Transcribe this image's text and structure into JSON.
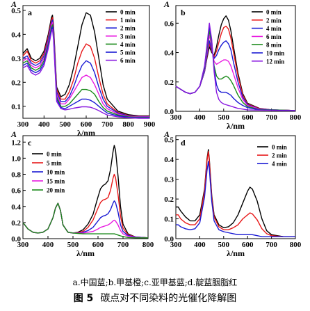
{
  "captions": {
    "sub": "a.中国蓝;b.甲基橙;c.亚甲基蓝;d.靛蓝胭脂红",
    "figure_label": "图 5",
    "figure_title": "碳点对不同染料的光催化降解图"
  },
  "chart_data": [
    {
      "type": "line",
      "panel": "a",
      "ylabel": "A",
      "xlabel": "λ/nm",
      "xlim": [
        300,
        900
      ],
      "ylim": [
        0.05,
        0.52
      ],
      "xticks": [
        300,
        400,
        500,
        600,
        700,
        800,
        900
      ],
      "yticks": [
        0.1,
        0.2,
        0.3,
        0.4,
        0.5
      ],
      "ytick_labels": [
        "0.1",
        "0.2",
        "0.3",
        "0.4",
        "0.5"
      ],
      "legend_position": "top-right",
      "x": [
        300,
        320,
        340,
        360,
        380,
        400,
        420,
        435,
        440,
        445,
        460,
        480,
        500,
        520,
        540,
        560,
        580,
        600,
        620,
        640,
        660,
        680,
        700,
        750,
        800,
        850,
        900
      ],
      "series": [
        {
          "name": "0 min",
          "color": "#000000",
          "values": [
            0.32,
            0.34,
            0.3,
            0.29,
            0.3,
            0.33,
            0.4,
            0.47,
            0.48,
            0.44,
            0.18,
            0.14,
            0.15,
            0.19,
            0.26,
            0.35,
            0.44,
            0.49,
            0.48,
            0.41,
            0.3,
            0.19,
            0.13,
            0.08,
            0.065,
            0.06,
            0.06
          ]
        },
        {
          "name": "1 min",
          "color": "#e8191a",
          "values": [
            0.31,
            0.33,
            0.29,
            0.28,
            0.29,
            0.32,
            0.39,
            0.46,
            0.47,
            0.43,
            0.17,
            0.13,
            0.13,
            0.16,
            0.21,
            0.28,
            0.33,
            0.36,
            0.35,
            0.3,
            0.22,
            0.15,
            0.11,
            0.075,
            0.062,
            0.058,
            0.058
          ]
        },
        {
          "name": "2 min",
          "color": "#1a1ad4",
          "values": [
            0.3,
            0.31,
            0.28,
            0.27,
            0.28,
            0.31,
            0.38,
            0.45,
            0.46,
            0.42,
            0.16,
            0.12,
            0.12,
            0.14,
            0.18,
            0.23,
            0.27,
            0.29,
            0.28,
            0.24,
            0.18,
            0.13,
            0.1,
            0.072,
            0.06,
            0.057,
            0.057
          ]
        },
        {
          "name": "3 min",
          "color": "#e81ae0",
          "values": [
            0.29,
            0.3,
            0.27,
            0.26,
            0.27,
            0.3,
            0.37,
            0.44,
            0.45,
            0.41,
            0.15,
            0.11,
            0.11,
            0.13,
            0.16,
            0.19,
            0.22,
            0.23,
            0.22,
            0.19,
            0.15,
            0.11,
            0.09,
            0.068,
            0.058,
            0.056,
            0.056
          ]
        },
        {
          "name": "4 min",
          "color": "#1a8a1a",
          "values": [
            0.28,
            0.29,
            0.26,
            0.25,
            0.26,
            0.29,
            0.36,
            0.43,
            0.44,
            0.4,
            0.14,
            0.1,
            0.1,
            0.11,
            0.13,
            0.15,
            0.17,
            0.17,
            0.165,
            0.15,
            0.12,
            0.095,
            0.08,
            0.064,
            0.056,
            0.054,
            0.054
          ]
        },
        {
          "name": "5 min",
          "color": "#1a1ad4",
          "values": [
            0.27,
            0.28,
            0.25,
            0.24,
            0.25,
            0.28,
            0.35,
            0.42,
            0.43,
            0.39,
            0.13,
            0.095,
            0.09,
            0.1,
            0.11,
            0.12,
            0.13,
            0.13,
            0.125,
            0.115,
            0.1,
            0.085,
            0.072,
            0.06,
            0.054,
            0.052,
            0.052
          ]
        },
        {
          "name": "6 min",
          "color": "#8a1ae0",
          "values": [
            0.26,
            0.27,
            0.24,
            0.23,
            0.24,
            0.27,
            0.34,
            0.41,
            0.42,
            0.38,
            0.12,
            0.09,
            0.085,
            0.088,
            0.092,
            0.095,
            0.098,
            0.098,
            0.096,
            0.09,
            0.082,
            0.072,
            0.064,
            0.056,
            0.052,
            0.05,
            0.05
          ]
        }
      ]
    },
    {
      "type": "line",
      "panel": "b",
      "ylabel": "A",
      "xlabel": "λ/nm",
      "xlim": [
        300,
        800
      ],
      "ylim": [
        0.0,
        0.72
      ],
      "xticks": [
        300,
        400,
        500,
        600,
        700,
        800
      ],
      "yticks": [
        0.0,
        0.2,
        0.4,
        0.6
      ],
      "ytick_labels": [
        "0.0",
        "0.2",
        "0.4",
        "0.6"
      ],
      "legend_position": "top-right",
      "x": [
        300,
        320,
        340,
        360,
        380,
        400,
        420,
        430,
        440,
        450,
        460,
        470,
        480,
        490,
        500,
        510,
        520,
        530,
        540,
        560,
        580,
        600,
        650,
        700,
        750,
        800
      ],
      "series": [
        {
          "name": "0 min",
          "color": "#000000",
          "values": [
            0.17,
            0.15,
            0.13,
            0.12,
            0.13,
            0.17,
            0.27,
            0.36,
            0.44,
            0.4,
            0.38,
            0.44,
            0.52,
            0.59,
            0.63,
            0.65,
            0.62,
            0.55,
            0.45,
            0.26,
            0.12,
            0.055,
            0.02,
            0.01,
            0.008,
            0.005
          ]
        },
        {
          "name": "2 min",
          "color": "#e8191a",
          "values": [
            0.17,
            0.15,
            0.13,
            0.12,
            0.13,
            0.17,
            0.27,
            0.37,
            0.46,
            0.41,
            0.37,
            0.41,
            0.47,
            0.53,
            0.57,
            0.58,
            0.56,
            0.5,
            0.41,
            0.24,
            0.11,
            0.05,
            0.018,
            0.01,
            0.008,
            0.005
          ]
        },
        {
          "name": "4 min",
          "color": "#1a1ad4",
          "values": [
            0.17,
            0.15,
            0.13,
            0.12,
            0.13,
            0.17,
            0.27,
            0.38,
            0.48,
            0.42,
            0.36,
            0.38,
            0.42,
            0.45,
            0.47,
            0.48,
            0.46,
            0.42,
            0.34,
            0.2,
            0.095,
            0.045,
            0.016,
            0.01,
            0.008,
            0.005
          ]
        },
        {
          "name": "6 min",
          "color": "#e81ae0",
          "values": [
            0.17,
            0.15,
            0.13,
            0.12,
            0.13,
            0.17,
            0.28,
            0.4,
            0.52,
            0.44,
            0.34,
            0.32,
            0.33,
            0.34,
            0.35,
            0.35,
            0.34,
            0.31,
            0.26,
            0.16,
            0.08,
            0.04,
            0.015,
            0.01,
            0.008,
            0.005
          ]
        },
        {
          "name": "8 min",
          "color": "#1a8a1a",
          "values": [
            0.17,
            0.15,
            0.13,
            0.12,
            0.13,
            0.17,
            0.29,
            0.42,
            0.55,
            0.46,
            0.31,
            0.24,
            0.22,
            0.22,
            0.23,
            0.24,
            0.23,
            0.21,
            0.18,
            0.11,
            0.06,
            0.032,
            0.012,
            0.01,
            0.008,
            0.005
          ]
        },
        {
          "name": "10 min",
          "color": "#1a1ad4",
          "values": [
            0.17,
            0.15,
            0.13,
            0.12,
            0.13,
            0.17,
            0.3,
            0.44,
            0.58,
            0.48,
            0.29,
            0.18,
            0.14,
            0.13,
            0.13,
            0.13,
            0.12,
            0.11,
            0.09,
            0.06,
            0.04,
            0.025,
            0.01,
            0.008,
            0.006,
            0.005
          ]
        },
        {
          "name": "12 min",
          "color": "#8a1ae0",
          "values": [
            0.17,
            0.15,
            0.13,
            0.12,
            0.13,
            0.17,
            0.31,
            0.45,
            0.6,
            0.49,
            0.27,
            0.13,
            0.08,
            0.06,
            0.05,
            0.045,
            0.04,
            0.035,
            0.03,
            0.02,
            0.015,
            0.01,
            0.008,
            0.006,
            0.005,
            0.005
          ]
        }
      ]
    },
    {
      "type": "line",
      "panel": "c",
      "ylabel": "A",
      "xlabel": "λ/nm",
      "xlim": [
        300,
        800
      ],
      "ylim": [
        0.0,
        1.28
      ],
      "xticks": [
        300,
        400,
        500,
        600,
        700,
        800
      ],
      "yticks": [
        0.0,
        0.2,
        0.4,
        0.6,
        0.8,
        1.0,
        1.2
      ],
      "ytick_labels": [
        "0.0",
        "0.2",
        "0.4",
        "0.6",
        "0.8",
        "1.0",
        "1.2"
      ],
      "legend_position": "top-left",
      "x": [
        300,
        320,
        340,
        360,
        380,
        400,
        420,
        430,
        440,
        450,
        460,
        480,
        500,
        520,
        540,
        560,
        580,
        600,
        610,
        620,
        630,
        640,
        650,
        660,
        665,
        670,
        680,
        690,
        700,
        720,
        750,
        800
      ],
      "series": [
        {
          "name": "0 min",
          "color": "#000000",
          "values": [
            0.2,
            0.12,
            0.08,
            0.07,
            0.08,
            0.12,
            0.26,
            0.38,
            0.44,
            0.35,
            0.17,
            0.08,
            0.07,
            0.08,
            0.11,
            0.18,
            0.3,
            0.52,
            0.62,
            0.66,
            0.68,
            0.72,
            0.86,
            1.08,
            1.16,
            1.1,
            0.78,
            0.4,
            0.18,
            0.06,
            0.02,
            0.01
          ]
        },
        {
          "name": "5 min",
          "color": "#e8191a",
          "values": [
            0.2,
            0.12,
            0.08,
            0.07,
            0.08,
            0.12,
            0.26,
            0.38,
            0.44,
            0.35,
            0.17,
            0.08,
            0.07,
            0.075,
            0.09,
            0.14,
            0.23,
            0.38,
            0.45,
            0.48,
            0.49,
            0.51,
            0.6,
            0.75,
            0.8,
            0.76,
            0.55,
            0.28,
            0.13,
            0.05,
            0.02,
            0.01
          ]
        },
        {
          "name": "10 min",
          "color": "#1a1ad4",
          "values": [
            0.2,
            0.12,
            0.08,
            0.07,
            0.08,
            0.12,
            0.26,
            0.38,
            0.44,
            0.35,
            0.17,
            0.08,
            0.07,
            0.07,
            0.08,
            0.1,
            0.14,
            0.22,
            0.26,
            0.28,
            0.29,
            0.31,
            0.36,
            0.44,
            0.47,
            0.45,
            0.33,
            0.17,
            0.09,
            0.04,
            0.02,
            0.01
          ]
        },
        {
          "name": "15 min",
          "color": "#e81ae0",
          "values": [
            0.2,
            0.12,
            0.08,
            0.07,
            0.08,
            0.12,
            0.26,
            0.38,
            0.44,
            0.35,
            0.17,
            0.08,
            0.07,
            0.07,
            0.07,
            0.08,
            0.09,
            0.12,
            0.14,
            0.15,
            0.16,
            0.17,
            0.19,
            0.22,
            0.23,
            0.22,
            0.17,
            0.1,
            0.06,
            0.03,
            0.015,
            0.01
          ]
        },
        {
          "name": "20 min",
          "color": "#1a8a1a",
          "values": [
            0.2,
            0.12,
            0.08,
            0.07,
            0.08,
            0.12,
            0.26,
            0.38,
            0.44,
            0.35,
            0.17,
            0.08,
            0.07,
            0.065,
            0.06,
            0.06,
            0.06,
            0.06,
            0.06,
            0.06,
            0.06,
            0.06,
            0.06,
            0.06,
            0.06,
            0.055,
            0.045,
            0.035,
            0.025,
            0.015,
            0.01,
            0.01
          ]
        }
      ]
    },
    {
      "type": "line",
      "panel": "d",
      "ylabel": "A",
      "xlabel": "λ/nm",
      "xlim": [
        300,
        800
      ],
      "ylim": [
        0.0,
        0.52
      ],
      "xticks": [
        300,
        400,
        500,
        600,
        700,
        800
      ],
      "yticks": [
        0.0,
        0.1,
        0.2,
        0.3,
        0.4,
        0.5
      ],
      "ytick_labels": [
        "0.0",
        "0.1",
        "0.2",
        "0.3",
        "0.4",
        "0.5"
      ],
      "legend_position": "top-right",
      "x": [
        300,
        310,
        320,
        340,
        360,
        380,
        400,
        420,
        430,
        436,
        440,
        450,
        460,
        480,
        500,
        520,
        540,
        560,
        580,
        600,
        610,
        620,
        640,
        660,
        680,
        700,
        750,
        800
      ],
      "series": [
        {
          "name": "0 min",
          "color": "#000000",
          "values": [
            0.16,
            0.16,
            0.14,
            0.11,
            0.09,
            0.09,
            0.12,
            0.25,
            0.4,
            0.45,
            0.4,
            0.22,
            0.12,
            0.07,
            0.055,
            0.06,
            0.08,
            0.12,
            0.18,
            0.24,
            0.26,
            0.25,
            0.19,
            0.1,
            0.04,
            0.02,
            0.01,
            0.01
          ]
        },
        {
          "name": "2 min",
          "color": "#e8191a",
          "values": [
            0.12,
            0.12,
            0.1,
            0.08,
            0.07,
            0.07,
            0.1,
            0.24,
            0.39,
            0.44,
            0.39,
            0.21,
            0.11,
            0.06,
            0.045,
            0.045,
            0.055,
            0.07,
            0.1,
            0.12,
            0.13,
            0.125,
            0.095,
            0.05,
            0.025,
            0.015,
            0.01,
            0.01
          ]
        },
        {
          "name": "4 min",
          "color": "#1a1ad4",
          "values": [
            0.07,
            0.07,
            0.06,
            0.05,
            0.045,
            0.05,
            0.08,
            0.21,
            0.34,
            0.39,
            0.35,
            0.19,
            0.09,
            0.045,
            0.035,
            0.03,
            0.025,
            0.02,
            0.02,
            0.02,
            0.02,
            0.02,
            0.015,
            0.01,
            0.01,
            0.01,
            0.01,
            0.01
          ]
        }
      ]
    }
  ]
}
